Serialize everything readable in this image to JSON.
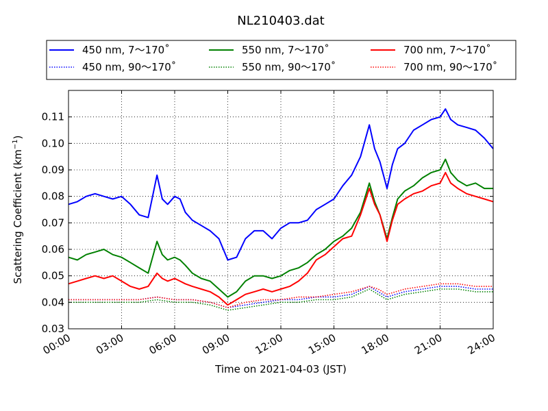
{
  "chart_data": {
    "type": "line",
    "title": "NL210403.dat",
    "xlabel": "Time on 2021-04-03 (JST)",
    "ylabel": "Scattering Coefficient (km",
    "ylabel_unit_exp": "−1",
    "ylabel_close": ")",
    "xlim": [
      0,
      24
    ],
    "ylim": [
      0.03,
      0.12
    ],
    "x_ticks": [
      0,
      3,
      6,
      9,
      12,
      15,
      18,
      21,
      24
    ],
    "x_tick_labels": [
      "00:00",
      "03:00",
      "06:00",
      "09:00",
      "12:00",
      "15:00",
      "18:00",
      "21:00",
      "24:00"
    ],
    "y_ticks": [
      0.03,
      0.04,
      0.05,
      0.06,
      0.07,
      0.08,
      0.09,
      0.1,
      0.11
    ],
    "y_tick_labels": [
      "0.03",
      "0.04",
      "0.05",
      "0.06",
      "0.07",
      "0.08",
      "0.09",
      "0.10",
      "0.11"
    ],
    "grid": true,
    "legend_position": "top, above plot, 3 columns",
    "series": [
      {
        "name": "450 nm, 7～170˚",
        "color": "#0000ff",
        "style": "solid",
        "x": [
          0,
          0.5,
          1,
          1.5,
          2,
          2.5,
          3,
          3.5,
          4,
          4.5,
          5,
          5.3,
          5.6,
          6,
          6.3,
          6.6,
          7,
          7.5,
          8,
          8.5,
          9,
          9.5,
          10,
          10.5,
          11,
          11.5,
          12,
          12.5,
          13,
          13.5,
          14,
          14.5,
          15,
          15.5,
          16,
          16.5,
          17,
          17.3,
          17.6,
          18,
          18.3,
          18.6,
          19,
          19.5,
          20,
          20.5,
          21,
          21.3,
          21.6,
          22,
          22.5,
          23,
          23.5,
          24
        ],
        "y": [
          0.077,
          0.078,
          0.08,
          0.081,
          0.08,
          0.079,
          0.08,
          0.077,
          0.073,
          0.072,
          0.088,
          0.079,
          0.077,
          0.08,
          0.079,
          0.074,
          0.071,
          0.069,
          0.067,
          0.064,
          0.056,
          0.057,
          0.064,
          0.067,
          0.067,
          0.064,
          0.068,
          0.07,
          0.07,
          0.071,
          0.075,
          0.077,
          0.079,
          0.084,
          0.088,
          0.095,
          0.107,
          0.098,
          0.093,
          0.083,
          0.092,
          0.098,
          0.1,
          0.105,
          0.107,
          0.109,
          0.11,
          0.113,
          0.109,
          0.107,
          0.106,
          0.105,
          0.102,
          0.098
        ]
      },
      {
        "name": "550 nm, 7～170˚",
        "color": "#008000",
        "style": "solid",
        "x": [
          0,
          0.5,
          1,
          1.5,
          2,
          2.5,
          3,
          3.5,
          4,
          4.5,
          5,
          5.3,
          5.6,
          6,
          6.3,
          6.6,
          7,
          7.5,
          8,
          8.5,
          9,
          9.5,
          10,
          10.5,
          11,
          11.5,
          12,
          12.5,
          13,
          13.5,
          14,
          14.5,
          15,
          15.5,
          16,
          16.5,
          17,
          17.3,
          17.6,
          18,
          18.3,
          18.6,
          19,
          19.5,
          20,
          20.5,
          21,
          21.3,
          21.6,
          22,
          22.5,
          23,
          23.5,
          24
        ],
        "y": [
          0.057,
          0.056,
          0.058,
          0.059,
          0.06,
          0.058,
          0.057,
          0.055,
          0.053,
          0.051,
          0.063,
          0.058,
          0.056,
          0.057,
          0.056,
          0.054,
          0.051,
          0.049,
          0.048,
          0.045,
          0.042,
          0.044,
          0.048,
          0.05,
          0.05,
          0.049,
          0.05,
          0.052,
          0.053,
          0.055,
          0.058,
          0.06,
          0.063,
          0.065,
          0.068,
          0.074,
          0.085,
          0.078,
          0.073,
          0.064,
          0.072,
          0.079,
          0.082,
          0.084,
          0.087,
          0.089,
          0.09,
          0.094,
          0.089,
          0.086,
          0.084,
          0.085,
          0.083,
          0.083
        ]
      },
      {
        "name": "700 nm, 7～170˚",
        "color": "#ff0000",
        "style": "solid",
        "x": [
          0,
          0.5,
          1,
          1.5,
          2,
          2.5,
          3,
          3.5,
          4,
          4.5,
          5,
          5.3,
          5.6,
          6,
          6.3,
          6.6,
          7,
          7.5,
          8,
          8.5,
          9,
          9.5,
          10,
          10.5,
          11,
          11.5,
          12,
          12.5,
          13,
          13.5,
          14,
          14.5,
          15,
          15.5,
          16,
          16.5,
          17,
          17.3,
          17.6,
          18,
          18.3,
          18.6,
          19,
          19.5,
          20,
          20.5,
          21,
          21.3,
          21.6,
          22,
          22.5,
          23,
          23.5,
          24
        ],
        "y": [
          0.047,
          0.048,
          0.049,
          0.05,
          0.049,
          0.05,
          0.048,
          0.046,
          0.045,
          0.046,
          0.051,
          0.049,
          0.048,
          0.049,
          0.048,
          0.047,
          0.046,
          0.045,
          0.044,
          0.042,
          0.039,
          0.041,
          0.043,
          0.044,
          0.045,
          0.044,
          0.045,
          0.046,
          0.048,
          0.051,
          0.056,
          0.058,
          0.061,
          0.064,
          0.065,
          0.073,
          0.083,
          0.077,
          0.073,
          0.063,
          0.071,
          0.077,
          0.079,
          0.081,
          0.082,
          0.084,
          0.085,
          0.089,
          0.085,
          0.083,
          0.081,
          0.08,
          0.079,
          0.078
        ]
      },
      {
        "name": "450 nm, 90～170˚",
        "color": "#0000ff",
        "style": "dotted",
        "x": [
          0,
          1,
          2,
          3,
          4,
          5,
          6,
          7,
          8,
          9,
          10,
          11,
          12,
          13,
          14,
          15,
          16,
          17,
          17.5,
          18,
          19,
          20,
          21,
          22,
          23,
          24
        ],
        "y": [
          0.041,
          0.041,
          0.041,
          0.041,
          0.041,
          0.042,
          0.041,
          0.041,
          0.04,
          0.038,
          0.039,
          0.04,
          0.041,
          0.041,
          0.042,
          0.042,
          0.043,
          0.046,
          0.044,
          0.042,
          0.044,
          0.045,
          0.046,
          0.046,
          0.045,
          0.045
        ]
      },
      {
        "name": "550 nm, 90～170˚",
        "color": "#008000",
        "style": "dotted",
        "x": [
          0,
          1,
          2,
          3,
          4,
          5,
          6,
          7,
          8,
          9,
          10,
          11,
          12,
          13,
          14,
          15,
          16,
          17,
          17.5,
          18,
          19,
          20,
          21,
          22,
          23,
          24
        ],
        "y": [
          0.04,
          0.04,
          0.04,
          0.04,
          0.04,
          0.041,
          0.04,
          0.04,
          0.039,
          0.037,
          0.038,
          0.039,
          0.04,
          0.04,
          0.041,
          0.041,
          0.042,
          0.045,
          0.043,
          0.041,
          0.043,
          0.044,
          0.045,
          0.045,
          0.044,
          0.044
        ]
      },
      {
        "name": "700 nm, 90～170˚",
        "color": "#ff0000",
        "style": "dotted",
        "x": [
          0,
          1,
          2,
          3,
          4,
          5,
          6,
          7,
          8,
          9,
          10,
          11,
          12,
          13,
          14,
          15,
          16,
          17,
          17.5,
          18,
          19,
          20,
          21,
          22,
          23,
          24
        ],
        "y": [
          0.041,
          0.041,
          0.041,
          0.041,
          0.041,
          0.042,
          0.041,
          0.041,
          0.04,
          0.038,
          0.04,
          0.041,
          0.041,
          0.042,
          0.042,
          0.043,
          0.044,
          0.046,
          0.045,
          0.043,
          0.045,
          0.046,
          0.047,
          0.047,
          0.046,
          0.046
        ]
      }
    ]
  }
}
